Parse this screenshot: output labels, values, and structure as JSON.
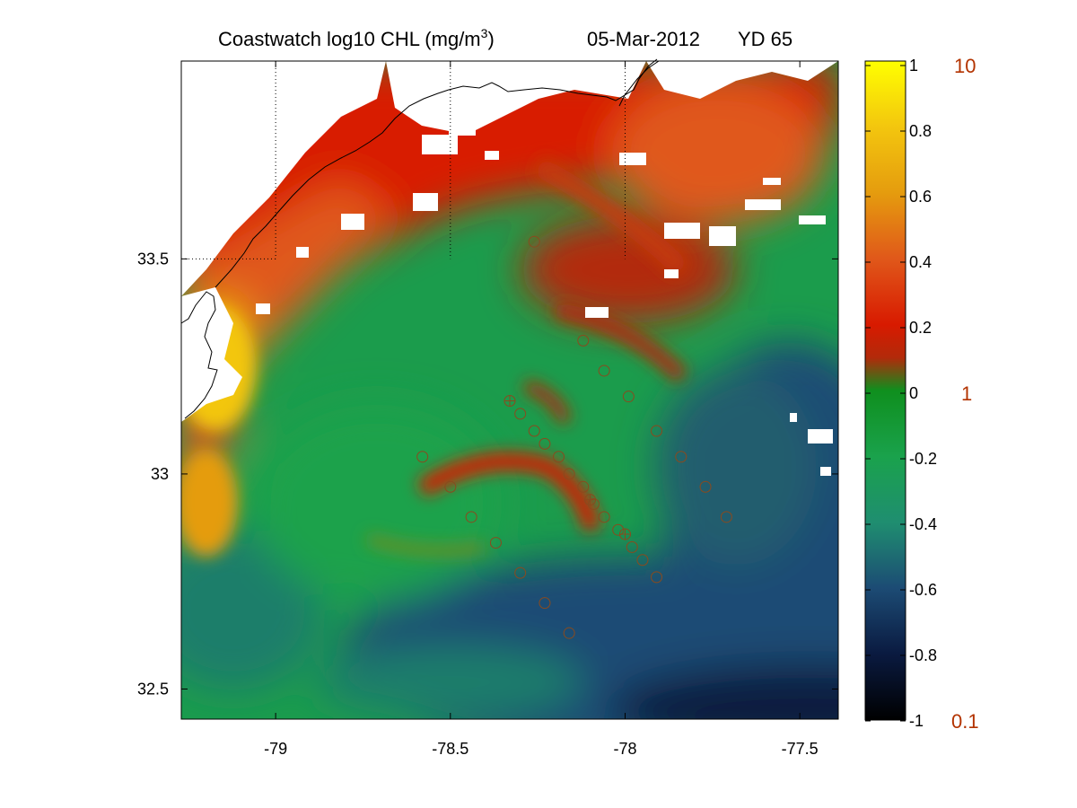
{
  "title": {
    "main": "Coastwatch  log10  CHL (mg/m",
    "superscript": "3",
    "close": ")",
    "date": "05-Mar-2012",
    "yearday": "YD 65"
  },
  "map": {
    "lon_range": [
      -79.27,
      -77.39
    ],
    "lat_range": [
      32.43,
      33.96
    ],
    "lon_ticks": [
      "-79",
      "-78.5",
      "-78",
      "-77.5"
    ],
    "lon_tick_values": [
      -79,
      -78.5,
      -78,
      -77.5
    ],
    "lat_ticks": [
      "33.5",
      "33",
      "32.5"
    ],
    "lat_tick_values": [
      33.5,
      33,
      32.5
    ],
    "grid_lines": [
      {
        "axis": "lon",
        "value": -79
      },
      {
        "axis": "lon",
        "value": -78.5
      },
      {
        "axis": "lon",
        "value": -78
      },
      {
        "axis": "lat",
        "value": 33.5
      }
    ],
    "field": "log10 chlorophyll, range -1 to 1",
    "stations": [
      {
        "lon": -78.26,
        "lat": 33.54
      },
      {
        "lon": -78.12,
        "lat": 33.31
      },
      {
        "lon": -78.06,
        "lat": 33.24
      },
      {
        "lon": -77.99,
        "lat": 33.18
      },
      {
        "lon": -77.91,
        "lat": 33.1
      },
      {
        "lon": -77.84,
        "lat": 33.04
      },
      {
        "lon": -77.77,
        "lat": 32.97
      },
      {
        "lon": -77.71,
        "lat": 32.9
      },
      {
        "lon": -78.58,
        "lat": 33.04
      },
      {
        "lon": -78.5,
        "lat": 32.97
      },
      {
        "lon": -78.44,
        "lat": 32.9
      },
      {
        "lon": -78.37,
        "lat": 32.84
      },
      {
        "lon": -78.3,
        "lat": 32.77
      },
      {
        "lon": -78.23,
        "lat": 32.7
      },
      {
        "lon": -78.16,
        "lat": 32.63
      },
      {
        "lon": -78.33,
        "lat": 33.17,
        "marker": "cross"
      },
      {
        "lon": -78.3,
        "lat": 33.14
      },
      {
        "lon": -78.26,
        "lat": 33.1
      },
      {
        "lon": -78.23,
        "lat": 33.07
      },
      {
        "lon": -78.19,
        "lat": 33.04
      },
      {
        "lon": -78.16,
        "lat": 33.0
      },
      {
        "lon": -78.12,
        "lat": 32.97
      },
      {
        "lon": -78.1,
        "lat": 32.94,
        "marker": "cross"
      },
      {
        "lon": -78.09,
        "lat": 32.93
      },
      {
        "lon": -78.06,
        "lat": 32.9
      },
      {
        "lon": -78.02,
        "lat": 32.87
      },
      {
        "lon": -78.0,
        "lat": 32.86,
        "marker": "cross"
      },
      {
        "lon": -77.98,
        "lat": 32.83
      },
      {
        "lon": -77.95,
        "lat": 32.8
      },
      {
        "lon": -77.91,
        "lat": 32.76
      }
    ]
  },
  "colorbar": {
    "range": [
      -1,
      1
    ],
    "ticks": [
      "1",
      "0.8",
      "0.6",
      "0.4",
      "0.2",
      "0",
      "-0.2",
      "-0.4",
      "-0.6",
      "-0.8",
      "-1"
    ],
    "tick_values": [
      1,
      0.8,
      0.6,
      0.4,
      0.2,
      0,
      -0.2,
      -0.4,
      -0.6,
      -0.8,
      -1
    ],
    "linear_labels": [
      "10",
      "1",
      "0.1"
    ],
    "linear_label_values": [
      1,
      0,
      -1
    ],
    "colormap": [
      [
        -1.0,
        "#000000"
      ],
      [
        -0.8,
        "#0a1a40"
      ],
      [
        -0.6,
        "#1c4b74"
      ],
      [
        -0.4,
        "#1f8e70"
      ],
      [
        -0.2,
        "#1aa24c"
      ],
      [
        0.0,
        "#0f8f1e"
      ],
      [
        0.1,
        "#b22a0a"
      ],
      [
        0.2,
        "#d81a00"
      ],
      [
        0.4,
        "#e0581a"
      ],
      [
        0.6,
        "#e59c0e"
      ],
      [
        0.8,
        "#f3c60e"
      ],
      [
        1.0,
        "#ffff00"
      ]
    ],
    "label_color": "#b33300"
  }
}
